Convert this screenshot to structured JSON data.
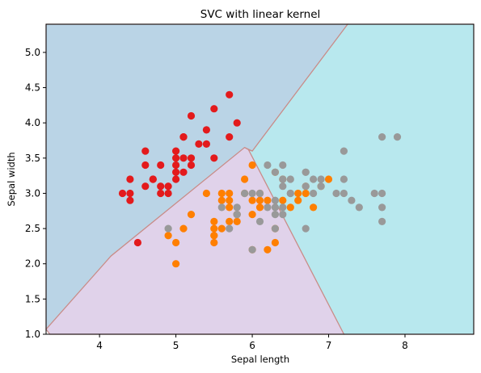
{
  "chart_data": {
    "type": "scatter",
    "title": "SVC with linear kernel",
    "xlabel": "Sepal length",
    "ylabel": "Sepal width",
    "xlim": [
      3.3,
      8.9
    ],
    "ylim": [
      1.0,
      5.4
    ],
    "x_ticks": [
      4,
      5,
      6,
      7,
      8
    ],
    "y_ticks": [
      1.0,
      1.5,
      2.0,
      2.5,
      3.0,
      3.5,
      4.0,
      4.5,
      5.0
    ],
    "grid": false,
    "legend": "none",
    "decision_regions": [
      {
        "color": "#bad4e6",
        "polygon": [
          [
            3.3,
            1.07
          ],
          [
            4.15,
            2.11
          ],
          [
            5.9,
            3.65
          ],
          [
            6.0,
            3.6
          ],
          [
            7.25,
            5.4
          ],
          [
            3.3,
            5.4
          ]
        ]
      },
      {
        "color": "#b8e8ee",
        "polygon": [
          [
            7.25,
            5.4
          ],
          [
            6.0,
            3.6
          ],
          [
            5.95,
            3.62
          ],
          [
            7.2,
            1.0
          ],
          [
            8.9,
            1.0
          ],
          [
            8.9,
            5.4
          ]
        ]
      },
      {
        "color": "#e0d2ea",
        "polygon": [
          [
            3.3,
            1.07
          ],
          [
            3.35,
            1.0
          ],
          [
            7.2,
            1.0
          ],
          [
            5.95,
            3.62
          ],
          [
            5.9,
            3.65
          ],
          [
            4.15,
            2.11
          ]
        ]
      }
    ],
    "boundary_color": "#c98c88",
    "series": [
      {
        "color": "#e31a1c",
        "points": [
          [
            5.1,
            3.5
          ],
          [
            4.9,
            3.0
          ],
          [
            4.7,
            3.2
          ],
          [
            4.6,
            3.1
          ],
          [
            5.0,
            3.6
          ],
          [
            5.4,
            3.9
          ],
          [
            4.6,
            3.4
          ],
          [
            5.0,
            3.4
          ],
          [
            4.4,
            2.9
          ],
          [
            4.9,
            3.1
          ],
          [
            5.4,
            3.7
          ],
          [
            4.8,
            3.4
          ],
          [
            4.8,
            3.0
          ],
          [
            4.3,
            3.0
          ],
          [
            5.8,
            4.0
          ],
          [
            5.7,
            4.4
          ],
          [
            5.1,
            3.8
          ],
          [
            5.7,
            3.8
          ],
          [
            5.2,
            3.5
          ],
          [
            5.2,
            3.4
          ],
          [
            4.7,
            3.2
          ],
          [
            4.8,
            3.1
          ],
          [
            5.2,
            4.1
          ],
          [
            5.5,
            4.2
          ],
          [
            5.0,
            3.2
          ],
          [
            5.5,
            3.5
          ],
          [
            4.4,
            3.0
          ],
          [
            4.5,
            2.3
          ],
          [
            4.4,
            3.2
          ],
          [
            5.0,
            3.5
          ],
          [
            5.1,
            3.8
          ],
          [
            5.3,
            3.7
          ],
          [
            5.0,
            3.3
          ],
          [
            4.6,
            3.6
          ],
          [
            5.1,
            3.3
          ]
        ]
      },
      {
        "color": "#ff7f00",
        "points": [
          [
            7.0,
            3.2
          ],
          [
            6.4,
            3.2
          ],
          [
            6.9,
            3.1
          ],
          [
            5.5,
            2.3
          ],
          [
            6.5,
            2.8
          ],
          [
            5.7,
            2.8
          ],
          [
            6.3,
            3.3
          ],
          [
            4.9,
            2.4
          ],
          [
            6.6,
            2.9
          ],
          [
            5.2,
            2.7
          ],
          [
            5.0,
            2.0
          ],
          [
            5.9,
            3.0
          ],
          [
            6.0,
            2.2
          ],
          [
            6.1,
            2.9
          ],
          [
            5.6,
            2.9
          ],
          [
            6.7,
            3.1
          ],
          [
            5.6,
            3.0
          ],
          [
            5.8,
            2.7
          ],
          [
            6.2,
            2.2
          ],
          [
            5.6,
            2.5
          ],
          [
            5.9,
            3.2
          ],
          [
            6.1,
            2.8
          ],
          [
            6.3,
            2.5
          ],
          [
            6.4,
            2.9
          ],
          [
            6.6,
            3.0
          ],
          [
            6.8,
            2.8
          ],
          [
            6.7,
            3.0
          ],
          [
            6.0,
            2.9
          ],
          [
            5.7,
            2.6
          ],
          [
            5.5,
            2.4
          ],
          [
            5.5,
            2.4
          ],
          [
            5.8,
            2.7
          ],
          [
            6.0,
            2.7
          ],
          [
            5.4,
            3.0
          ],
          [
            6.0,
            3.4
          ],
          [
            6.3,
            2.3
          ],
          [
            5.5,
            2.5
          ],
          [
            5.5,
            2.6
          ],
          [
            6.1,
            3.0
          ],
          [
            5.8,
            2.6
          ],
          [
            5.0,
            2.3
          ],
          [
            5.7,
            3.0
          ],
          [
            5.7,
            2.9
          ],
          [
            6.2,
            2.9
          ],
          [
            5.1,
            2.5
          ]
        ]
      },
      {
        "color": "#999999",
        "points": [
          [
            6.3,
            3.3
          ],
          [
            5.8,
            2.7
          ],
          [
            7.1,
            3.0
          ],
          [
            6.3,
            2.9
          ],
          [
            6.5,
            3.0
          ],
          [
            7.6,
            3.0
          ],
          [
            4.9,
            2.5
          ],
          [
            7.3,
            2.9
          ],
          [
            6.7,
            2.5
          ],
          [
            7.2,
            3.6
          ],
          [
            6.5,
            3.2
          ],
          [
            6.4,
            2.7
          ],
          [
            6.8,
            3.0
          ],
          [
            5.7,
            2.5
          ],
          [
            5.8,
            2.8
          ],
          [
            6.4,
            3.2
          ],
          [
            6.5,
            3.0
          ],
          [
            7.7,
            3.8
          ],
          [
            7.7,
            2.6
          ],
          [
            6.0,
            2.2
          ],
          [
            6.9,
            3.2
          ],
          [
            5.6,
            2.8
          ],
          [
            7.7,
            2.8
          ],
          [
            6.3,
            2.7
          ],
          [
            6.7,
            3.3
          ],
          [
            7.2,
            3.2
          ],
          [
            6.2,
            2.8
          ],
          [
            6.1,
            3.0
          ],
          [
            6.4,
            2.8
          ],
          [
            7.2,
            3.0
          ],
          [
            7.4,
            2.8
          ],
          [
            7.9,
            3.8
          ],
          [
            6.3,
            2.8
          ],
          [
            6.1,
            2.6
          ],
          [
            7.7,
            3.0
          ],
          [
            6.4,
            3.1
          ],
          [
            6.0,
            3.0
          ],
          [
            6.9,
            3.1
          ],
          [
            6.7,
            3.1
          ],
          [
            5.8,
            2.7
          ],
          [
            6.8,
            3.2
          ],
          [
            6.7,
            3.3
          ],
          [
            6.3,
            2.5
          ],
          [
            6.2,
            3.4
          ],
          [
            5.9,
            3.0
          ],
          [
            6.4,
            3.4
          ]
        ]
      }
    ]
  }
}
